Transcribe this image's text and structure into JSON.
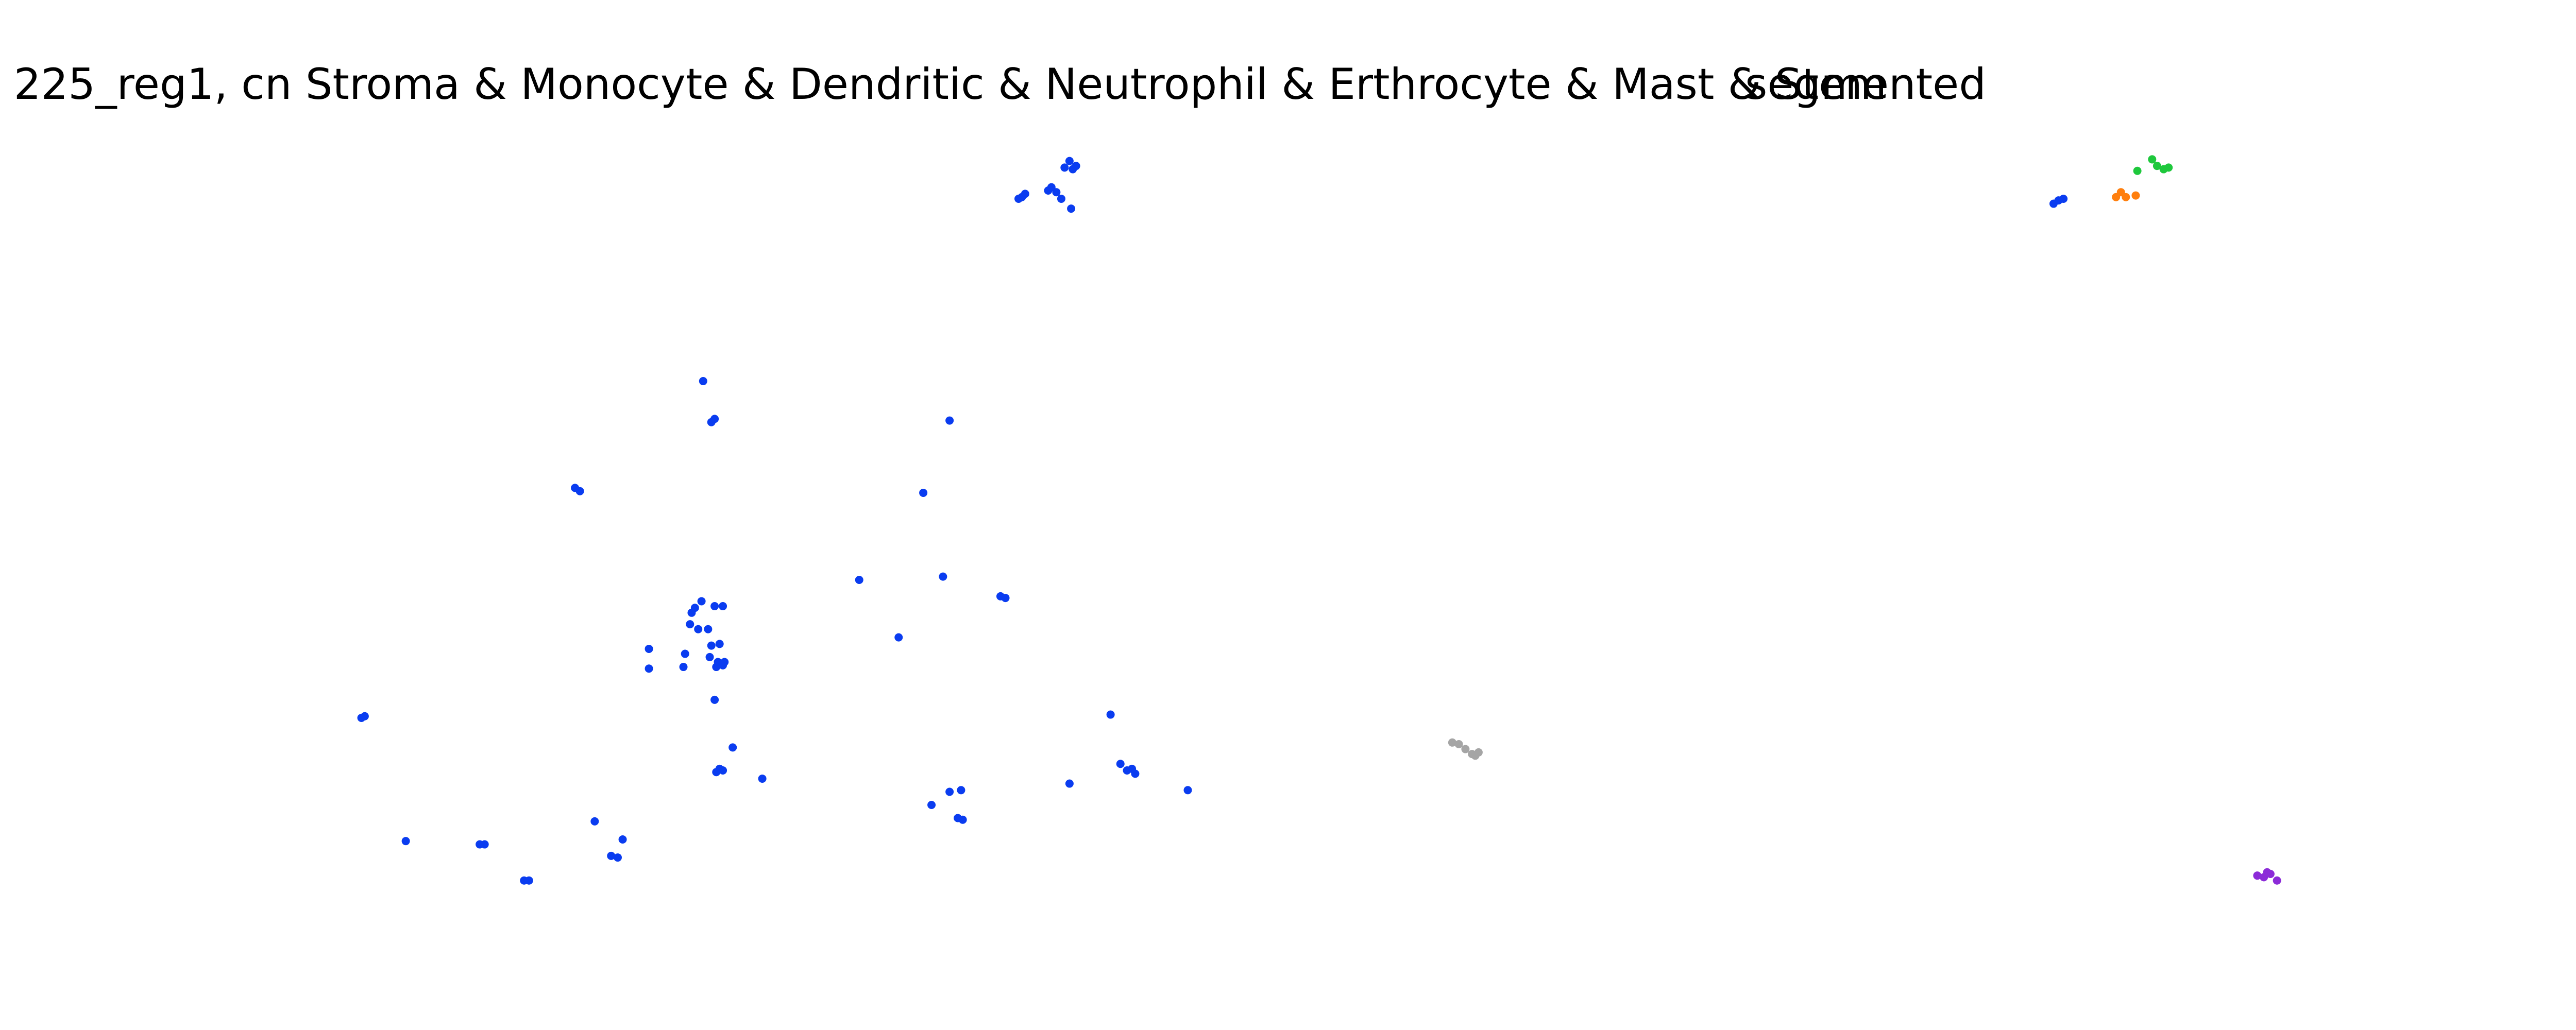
{
  "chart_data": [
    {
      "type": "scatter",
      "title": "225_reg1, cn Stroma & Monocyte & Dendritic & Neutrophil & Erthrocyte & Mast & Stem",
      "xlim": [
        0,
        1568
      ],
      "ylim": [
        627,
        0
      ],
      "series": [
        {
          "color": "#0a3cf0",
          "x": [
            622,
            624,
            620,
            640,
            643,
            638,
            646,
            651,
            655,
            653,
            648,
            652,
            428,
            433,
            435,
            578,
            350,
            353,
            562,
            523,
            574,
            609,
            612,
            547,
            427,
            423,
            421,
            435,
            440,
            420,
            425,
            431,
            395,
            417,
            433,
            438,
            416,
            395,
            432,
            437,
            440,
            436,
            441,
            435,
            222,
            220,
            446,
            438,
            440,
            436,
            464,
            676,
            682,
            686,
            689,
            691,
            651,
            723,
            578,
            585,
            567,
            583,
            586,
            247,
            292,
            295,
            362,
            379,
            372,
            376,
            319,
            322,
            1250,
            1253,
            1256
          ],
          "y": [
            120,
            118,
            121,
            114,
            117,
            116,
            121,
            98,
            101,
            103,
            102,
            127,
            232,
            257,
            255,
            256,
            297,
            299,
            300,
            353,
            351,
            363,
            364,
            388,
            366,
            370,
            373,
            369,
            369,
            380,
            383,
            383,
            395,
            398,
            393,
            392,
            406,
            407,
            400,
            403,
            405,
            406,
            403,
            426,
            436,
            437,
            455,
            468,
            469,
            470,
            474,
            435,
            465,
            469,
            468,
            471,
            477,
            481,
            482,
            481,
            490,
            498,
            499,
            512,
            514,
            514,
            500,
            511,
            521,
            522,
            536,
            536,
            124,
            122,
            121
          ]
        },
        {
          "color": "#1ec83c",
          "x": [
            1310,
            1313,
            1317,
            1320,
            1301
          ],
          "y": [
            97,
            101,
            103,
            102,
            104
          ]
        },
        {
          "color": "#ff7f0e",
          "x": [
            1288,
            1291,
            1294,
            1300
          ],
          "y": [
            120,
            117,
            120,
            119
          ]
        },
        {
          "color": "#a5a5a5",
          "x": [
            884,
            888,
            892,
            896,
            900,
            898
          ],
          "y": [
            452,
            453,
            456,
            459,
            458,
            460
          ]
        },
        {
          "color": "#8c2bd8",
          "x": [
            1374,
            1378,
            1382,
            1386,
            1380
          ],
          "y": [
            533,
            534,
            532,
            536,
            531
          ]
        }
      ]
    },
    {
      "type": "scatter",
      "title": "segmented"
    }
  ]
}
